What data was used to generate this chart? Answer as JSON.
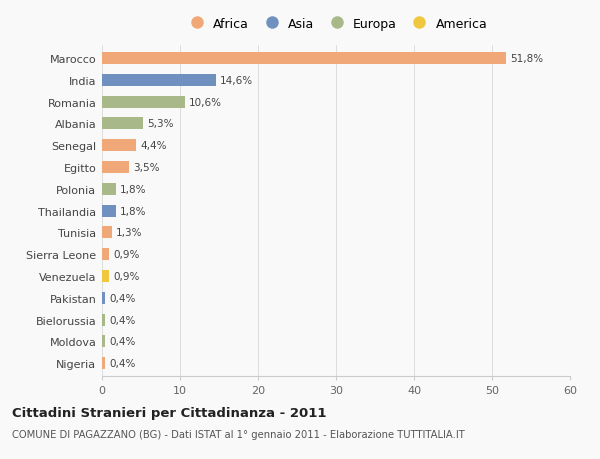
{
  "countries": [
    "Marocco",
    "India",
    "Romania",
    "Albania",
    "Senegal",
    "Egitto",
    "Polonia",
    "Thailandia",
    "Tunisia",
    "Sierra Leone",
    "Venezuela",
    "Pakistan",
    "Bielorussia",
    "Moldova",
    "Nigeria"
  ],
  "values": [
    51.8,
    14.6,
    10.6,
    5.3,
    4.4,
    3.5,
    1.8,
    1.8,
    1.3,
    0.9,
    0.9,
    0.4,
    0.4,
    0.4,
    0.4
  ],
  "labels": [
    "51,8%",
    "14,6%",
    "10,6%",
    "5,3%",
    "4,4%",
    "3,5%",
    "1,8%",
    "1,8%",
    "1,3%",
    "0,9%",
    "0,9%",
    "0,4%",
    "0,4%",
    "0,4%",
    "0,4%"
  ],
  "continents": [
    "Africa",
    "Asia",
    "Europa",
    "Europa",
    "Africa",
    "Africa",
    "Europa",
    "Asia",
    "Africa",
    "Africa",
    "America",
    "Asia",
    "Europa",
    "Europa",
    "Africa"
  ],
  "colors": {
    "Africa": "#F0A878",
    "Asia": "#7090C0",
    "Europa": "#A8B888",
    "America": "#F0C840"
  },
  "legend_order": [
    "Africa",
    "Asia",
    "Europa",
    "America"
  ],
  "xlim": [
    0,
    60
  ],
  "xticks": [
    0,
    10,
    20,
    30,
    40,
    50,
    60
  ],
  "title": "Cittadini Stranieri per Cittadinanza - 2011",
  "subtitle": "COMUNE DI PAGAZZANO (BG) - Dati ISTAT al 1° gennaio 2011 - Elaborazione TUTTITALIA.IT",
  "background_color": "#f9f9f9",
  "bar_height": 0.55
}
